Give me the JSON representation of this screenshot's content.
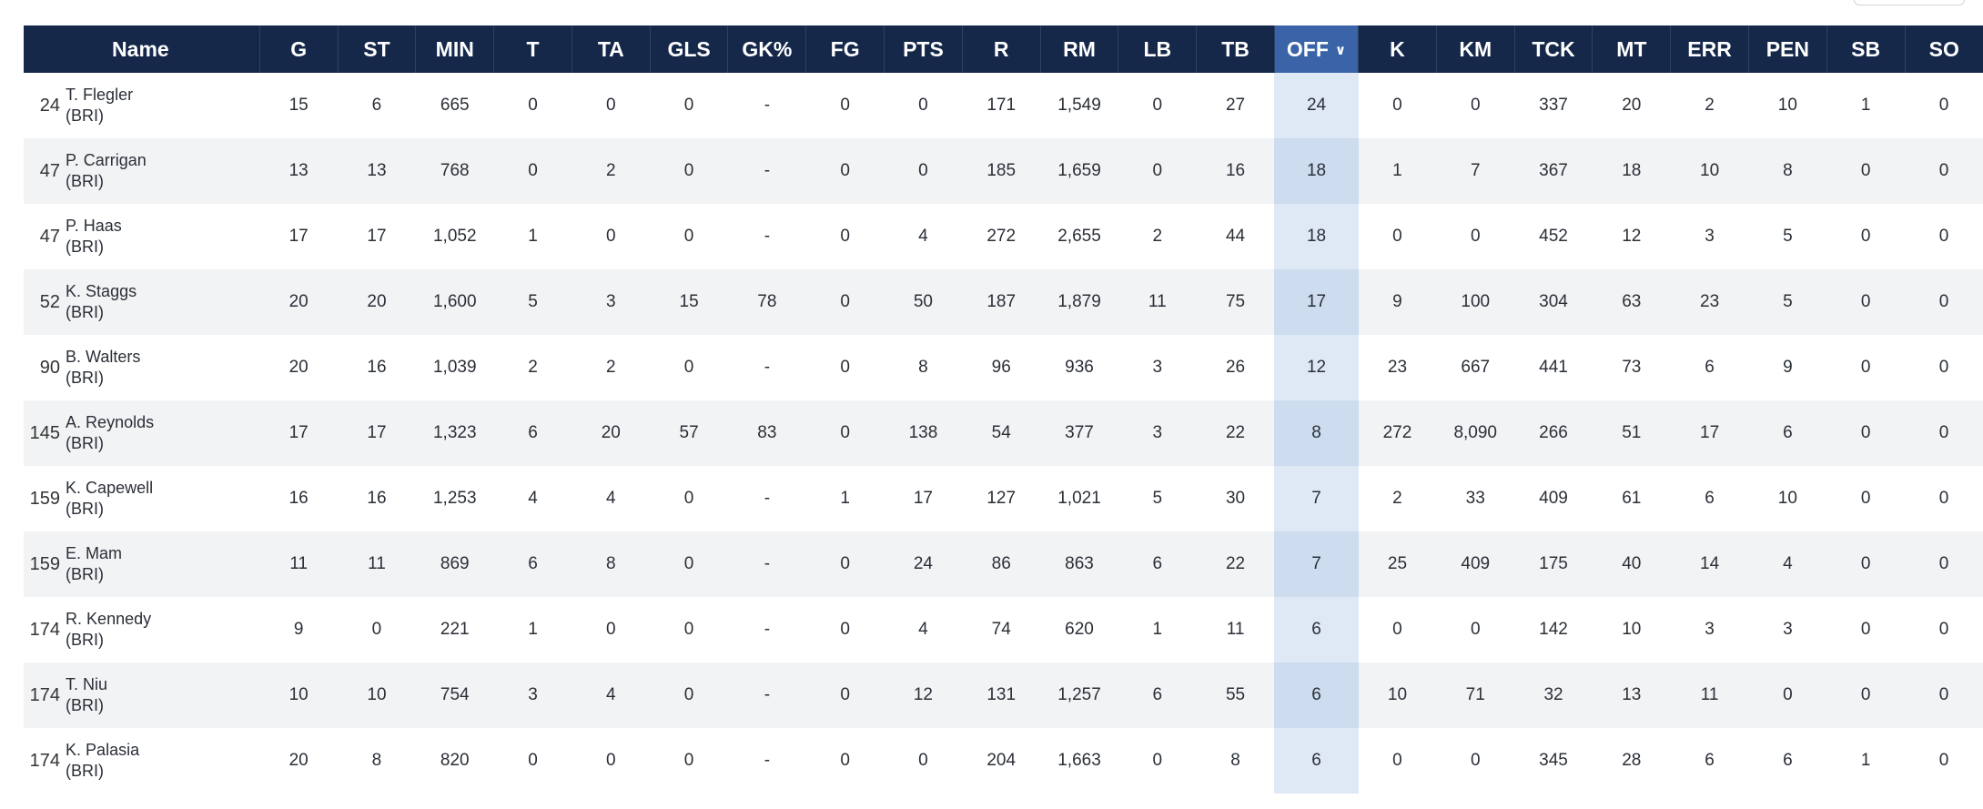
{
  "columns": [
    "Name",
    "G",
    "ST",
    "MIN",
    "T",
    "TA",
    "GLS",
    "GK%",
    "FG",
    "PTS",
    "R",
    "RM",
    "LB",
    "TB",
    "OFF",
    "K",
    "KM",
    "TCK",
    "MT",
    "ERR",
    "PEN",
    "SB",
    "SO"
  ],
  "sorted_column": "OFF",
  "rows": [
    {
      "rank": "24",
      "name": "T. Flegler",
      "team": "(BRI)",
      "stats": [
        "15",
        "6",
        "665",
        "0",
        "0",
        "0",
        "-",
        "0",
        "0",
        "171",
        "1,549",
        "0",
        "27",
        "24",
        "0",
        "0",
        "337",
        "20",
        "2",
        "10",
        "1",
        "0"
      ]
    },
    {
      "rank": "47",
      "name": "P. Carrigan",
      "team": "(BRI)",
      "stats": [
        "13",
        "13",
        "768",
        "0",
        "2",
        "0",
        "-",
        "0",
        "0",
        "185",
        "1,659",
        "0",
        "16",
        "18",
        "1",
        "7",
        "367",
        "18",
        "10",
        "8",
        "0",
        "0"
      ]
    },
    {
      "rank": "47",
      "name": "P. Haas",
      "team": "(BRI)",
      "stats": [
        "17",
        "17",
        "1,052",
        "1",
        "0",
        "0",
        "-",
        "0",
        "4",
        "272",
        "2,655",
        "2",
        "44",
        "18",
        "0",
        "0",
        "452",
        "12",
        "3",
        "5",
        "0",
        "0"
      ]
    },
    {
      "rank": "52",
      "name": "K. Staggs",
      "team": "(BRI)",
      "stats": [
        "20",
        "20",
        "1,600",
        "5",
        "3",
        "15",
        "78",
        "0",
        "50",
        "187",
        "1,879",
        "11",
        "75",
        "17",
        "9",
        "100",
        "304",
        "63",
        "23",
        "5",
        "0",
        "0"
      ]
    },
    {
      "rank": "90",
      "name": "B. Walters",
      "team": "(BRI)",
      "stats": [
        "20",
        "16",
        "1,039",
        "2",
        "2",
        "0",
        "-",
        "0",
        "8",
        "96",
        "936",
        "3",
        "26",
        "12",
        "23",
        "667",
        "441",
        "73",
        "6",
        "9",
        "0",
        "0"
      ]
    },
    {
      "rank": "145",
      "name": "A. Reynolds",
      "team": "(BRI)",
      "stats": [
        "17",
        "17",
        "1,323",
        "6",
        "20",
        "57",
        "83",
        "0",
        "138",
        "54",
        "377",
        "3",
        "22",
        "8",
        "272",
        "8,090",
        "266",
        "51",
        "17",
        "6",
        "0",
        "0"
      ]
    },
    {
      "rank": "159",
      "name": "K. Capewell",
      "team": "(BRI)",
      "stats": [
        "16",
        "16",
        "1,253",
        "4",
        "4",
        "0",
        "-",
        "1",
        "17",
        "127",
        "1,021",
        "5",
        "30",
        "7",
        "2",
        "33",
        "409",
        "61",
        "6",
        "10",
        "0",
        "0"
      ]
    },
    {
      "rank": "159",
      "name": "E. Mam",
      "team": "(BRI)",
      "stats": [
        "11",
        "11",
        "869",
        "6",
        "8",
        "0",
        "-",
        "0",
        "24",
        "86",
        "863",
        "6",
        "22",
        "7",
        "25",
        "409",
        "175",
        "40",
        "14",
        "4",
        "0",
        "0"
      ]
    },
    {
      "rank": "174",
      "name": "R. Kennedy",
      "team": "(BRI)",
      "stats": [
        "9",
        "0",
        "221",
        "1",
        "0",
        "0",
        "-",
        "0",
        "4",
        "74",
        "620",
        "1",
        "11",
        "6",
        "0",
        "0",
        "142",
        "10",
        "3",
        "3",
        "0",
        "0"
      ]
    },
    {
      "rank": "174",
      "name": "T. Niu",
      "team": "(BRI)",
      "stats": [
        "10",
        "10",
        "754",
        "3",
        "4",
        "0",
        "-",
        "0",
        "12",
        "131",
        "1,257",
        "6",
        "55",
        "6",
        "10",
        "71",
        "32",
        "13",
        "11",
        "0",
        "0",
        "0"
      ]
    },
    {
      "rank": "174",
      "name": "K. Palasia",
      "team": "(BRI)",
      "stats": [
        "20",
        "8",
        "820",
        "0",
        "0",
        "0",
        "-",
        "0",
        "0",
        "204",
        "1,663",
        "0",
        "8",
        "6",
        "0",
        "0",
        "345",
        "28",
        "6",
        "6",
        "1",
        "0"
      ]
    }
  ]
}
